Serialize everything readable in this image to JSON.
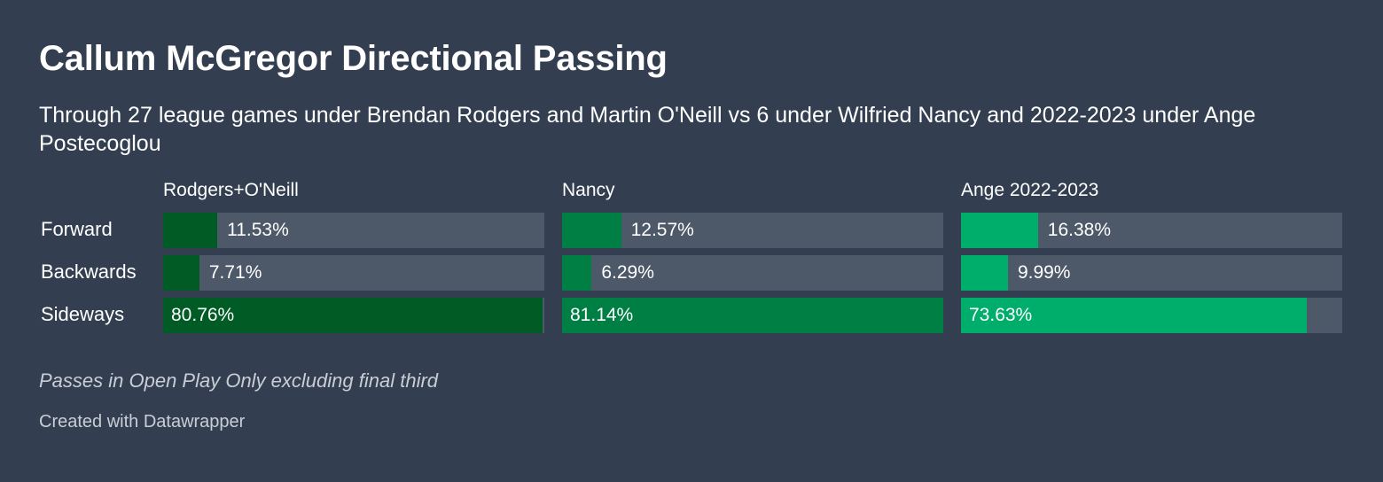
{
  "header": {
    "title": "Callum McGregor Directional Passing",
    "subtitle": "Through 27 league games under Brendan Rodgers and Martin O'Neill vs 6 under Wilfried Nancy and 2022-2023 under Ange Postecoglou"
  },
  "footer": {
    "note": "Passes in Open Play Only excluding final third",
    "credit": "Created with Datawrapper"
  },
  "chart_data": {
    "type": "bar",
    "orientation": "horizontal",
    "categories": [
      "Forward",
      "Backwards",
      "Sideways"
    ],
    "series": [
      {
        "name": "Rodgers+O'Neill",
        "values": [
          11.53,
          7.71,
          80.76
        ],
        "labels": [
          "11.53%",
          "7.71%",
          "80.76%"
        ],
        "color": "#005c24"
      },
      {
        "name": "Nancy",
        "values": [
          12.57,
          6.29,
          81.14
        ],
        "labels": [
          "12.57%",
          "6.29%",
          "81.14%"
        ],
        "color": "#007f44"
      },
      {
        "name": "Ange 2022-2023",
        "values": [
          16.38,
          9.99,
          73.63
        ],
        "labels": [
          "16.38%",
          "9.99%",
          "73.63%"
        ],
        "color": "#00ae6b"
      }
    ],
    "xlim": [
      0,
      81.14
    ],
    "track_color": "#4d5868"
  }
}
